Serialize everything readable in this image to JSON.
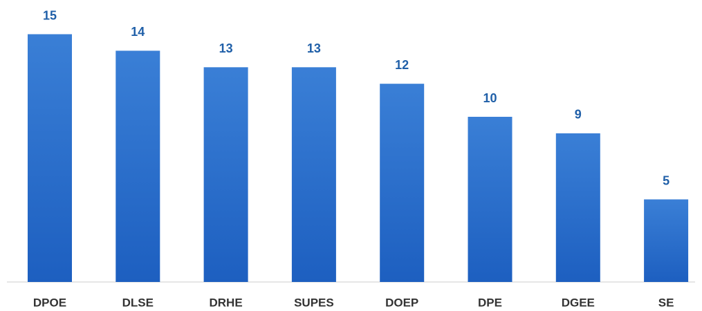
{
  "chart_data": {
    "type": "bar",
    "categories": [
      "DPOE",
      "DLSE",
      "DRHE",
      "SUPES",
      "DOEP",
      "DPE",
      "DGEE",
      "SE"
    ],
    "values": [
      15,
      14,
      13,
      13,
      12,
      10,
      9,
      5
    ],
    "color": "#2a6cc6"
  }
}
